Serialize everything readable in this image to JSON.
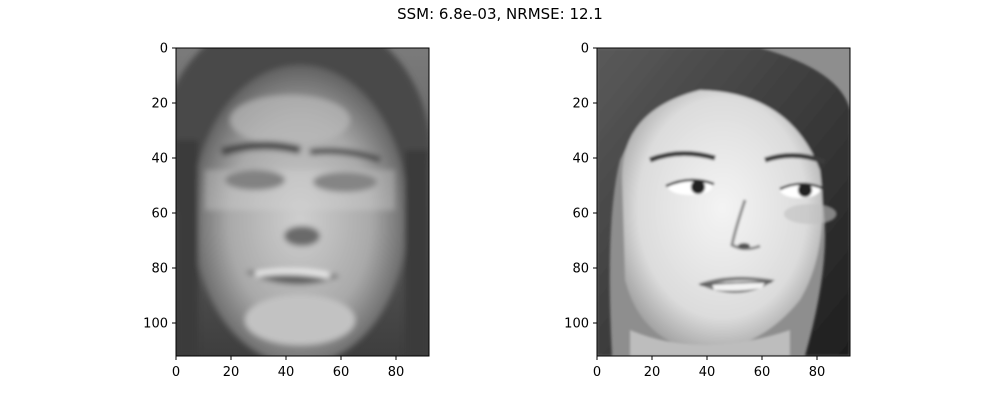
{
  "figure": {
    "suptitle": "SSM: 6.8e-03, NRMSE: 12.1"
  },
  "chart_data": [
    {
      "type": "heatmap",
      "image_content": "grayscale reconstructed face image (blurry)",
      "colormap": "gray",
      "image_shape": [
        112,
        92
      ],
      "xlim": [
        0,
        92
      ],
      "ylim": [
        112,
        0
      ],
      "xticks": [
        0,
        20,
        40,
        60,
        80
      ],
      "yticks": [
        0,
        20,
        40,
        60,
        80,
        100
      ],
      "xtick_labels": [
        "0",
        "20",
        "40",
        "60",
        "80"
      ],
      "ytick_labels": [
        "0",
        "20",
        "40",
        "60",
        "80",
        "100"
      ]
    },
    {
      "type": "heatmap",
      "image_content": "grayscale original face photograph",
      "colormap": "gray",
      "image_shape": [
        112,
        92
      ],
      "xlim": [
        0,
        92
      ],
      "ylim": [
        112,
        0
      ],
      "xticks": [
        0,
        20,
        40,
        60,
        80
      ],
      "yticks": [
        0,
        20,
        40,
        60,
        80,
        100
      ],
      "xtick_labels": [
        "0",
        "20",
        "40",
        "60",
        "80"
      ],
      "ytick_labels": [
        "0",
        "20",
        "40",
        "60",
        "80",
        "100"
      ]
    }
  ]
}
